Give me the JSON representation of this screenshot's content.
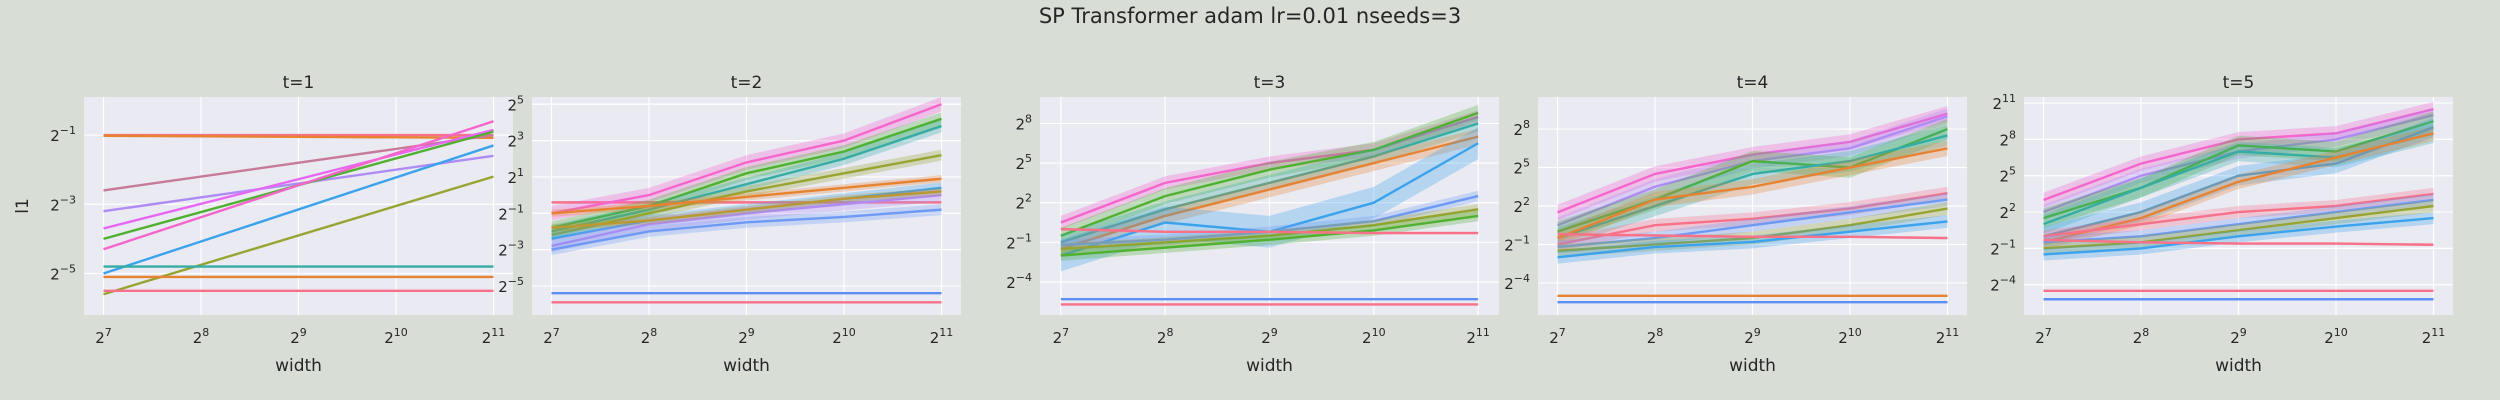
{
  "figure": {
    "suptitle": "SP Transformer adam lr=0.01 nseeds=3",
    "background": "#d8ddd6",
    "axes_background": "#eaeaf2",
    "grid": true,
    "palette": [
      "#f77189",
      "#e68332",
      "#bb9832",
      "#97a431",
      "#50b131",
      "#34ae91",
      "#37abb4",
      "#3ba3ec",
      "#6e9af4",
      "#ae8cf4",
      "#e866f4",
      "#f565cc",
      "#c58a44",
      "#36ada4",
      "#8c9b32",
      "#5d8ff4"
    ]
  },
  "chart_data": [
    {
      "type": "line",
      "title": "t=1",
      "xlabel": "width",
      "ylabel": "l1",
      "xscale": "log2",
      "yscale": "log2",
      "x_ticks": [
        "7",
        "8",
        "9",
        "10",
        "11"
      ],
      "y_ticks": [
        "-5",
        "-3",
        "-1"
      ],
      "xlim_log2": [
        6.8,
        11.2
      ],
      "ylim_log2": [
        -6.2,
        0.1
      ],
      "x": [
        128,
        2048
      ],
      "series": [
        {
          "values": [
            -1.0,
            -1.0
          ],
          "color": "#f77189",
          "band": 0.02
        },
        {
          "values": [
            -1.02,
            -1.08
          ],
          "color": "#e68332",
          "band": 0.02
        },
        {
          "values": [
            -2.6,
            -1.0
          ],
          "color": "#c77a99",
          "band": 0.03
        },
        {
          "values": [
            -3.2,
            -1.6
          ],
          "color": "#ae8cf4",
          "band": 0.02
        },
        {
          "values": [
            -3.7,
            -0.85
          ],
          "color": "#e866f4",
          "band": 0.02
        },
        {
          "values": [
            -4.0,
            -0.9
          ],
          "color": "#50b131",
          "band": 0.02
        },
        {
          "values": [
            -4.3,
            -0.6
          ],
          "color": "#f565cc",
          "band": 0.02
        },
        {
          "values": [
            -5.0,
            -1.3
          ],
          "color": "#3ba3ec",
          "band": 0.02
        },
        {
          "values": [
            -5.6,
            -2.2
          ],
          "color": "#97a431",
          "band": 0.02
        },
        {
          "values": [
            -4.8,
            -4.8
          ],
          "color": "#36ada4",
          "band": 0.02
        },
        {
          "values": [
            -5.1,
            -5.1
          ],
          "color": "#e68332",
          "band": 0.02
        },
        {
          "values": [
            -5.5,
            -5.5
          ],
          "color": "#f77189",
          "band": 0.02
        }
      ]
    },
    {
      "type": "line",
      "title": "t=2",
      "xlabel": "width",
      "ylabel": "",
      "xscale": "log2",
      "yscale": "log2",
      "x_ticks": [
        "7",
        "8",
        "9",
        "10",
        "11"
      ],
      "y_ticks": [
        "-5",
        "-3",
        "-1",
        "1",
        "3",
        "5"
      ],
      "xlim_log2": [
        6.8,
        11.2
      ],
      "ylim_log2": [
        -6.6,
        5.4
      ],
      "x": [
        128,
        256,
        512,
        1024,
        2048
      ],
      "series": [
        {
          "values": [
            -0.4,
            -0.4,
            -0.4,
            -0.4,
            -0.4
          ],
          "color": "#f77189",
          "band": 0.05
        },
        {
          "values": [
            -1.0,
            0.0,
            1.8,
            3.0,
            5.0
          ],
          "color": "#f565cc",
          "band": 0.4
        },
        {
          "values": [
            -1.8,
            -0.6,
            1.2,
            2.4,
            4.2
          ],
          "color": "#50b131",
          "band": 0.35
        },
        {
          "values": [
            -2.0,
            -0.8,
            0.6,
            2.0,
            3.8
          ],
          "color": "#36ada4",
          "band": 0.35
        },
        {
          "values": [
            -2.2,
            -1.0,
            0.2,
            1.2,
            2.2
          ],
          "color": "#97a431",
          "band": 0.3
        },
        {
          "values": [
            -1.0,
            -0.6,
            -0.1,
            0.4,
            0.9
          ],
          "color": "#e68332",
          "band": 0.2
        },
        {
          "values": [
            -2.4,
            -1.4,
            -0.8,
            -0.2,
            0.4
          ],
          "color": "#3ba3ec",
          "band": 0.3
        },
        {
          "values": [
            -2.8,
            -1.6,
            -1.0,
            -0.5,
            0.0
          ],
          "color": "#ae8cf4",
          "band": 0.35
        },
        {
          "values": [
            -3.0,
            -2.0,
            -1.5,
            -1.2,
            -0.8
          ],
          "color": "#6e9af4",
          "band": 0.3
        },
        {
          "values": [
            -1.8,
            -1.4,
            -0.8,
            -0.2,
            0.2
          ],
          "color": "#bb9832",
          "band": 0.2
        },
        {
          "values": [
            -5.4,
            -5.4,
            -5.4,
            -5.4,
            -5.4
          ],
          "color": "#5d8ff4",
          "band": 0.05
        },
        {
          "values": [
            -5.9,
            -5.9,
            -5.9,
            -5.9,
            -5.9
          ],
          "color": "#f77189",
          "band": 0.05
        }
      ]
    },
    {
      "type": "line",
      "title": "t=3",
      "xlabel": "width",
      "ylabel": "",
      "xscale": "log2",
      "yscale": "log2",
      "x_ticks": [
        "7",
        "8",
        "9",
        "10",
        "11"
      ],
      "y_ticks": [
        "-4",
        "-1",
        "2",
        "5",
        "8"
      ],
      "xlim_log2": [
        6.8,
        11.2
      ],
      "ylim_log2": [
        -6.5,
        10.0
      ],
      "x": [
        128,
        256,
        512,
        1024,
        2048
      ],
      "series": [
        {
          "values": [
            0.5,
            3.5,
            5.0,
            6.0,
            8.5
          ],
          "color": "#f565cc",
          "band": 0.5
        },
        {
          "values": [
            -0.5,
            2.5,
            4.5,
            6.0,
            8.8
          ],
          "color": "#50b131",
          "band": 0.6
        },
        {
          "values": [
            -1.0,
            1.5,
            3.5,
            5.5,
            8.0
          ],
          "color": "#36ada4",
          "band": 0.6
        },
        {
          "values": [
            -1.5,
            1.0,
            3.0,
            5.0,
            7.0
          ],
          "color": "#e68332",
          "band": 0.6
        },
        {
          "values": [
            -2.0,
            0.5,
            -0.2,
            2.0,
            6.5
          ],
          "color": "#3ba3ec",
          "band": 1.2
        },
        {
          "values": [
            -1.2,
            -0.8,
            -0.2,
            0.6,
            2.5
          ],
          "color": "#6e9af4",
          "band": 0.4
        },
        {
          "values": [
            -1.5,
            -1.0,
            -0.5,
            0.3,
            1.5
          ],
          "color": "#97a431",
          "band": 0.4
        },
        {
          "values": [
            -2.0,
            -1.4,
            -0.8,
            -0.1,
            1.0
          ],
          "color": "#50b131",
          "band": 0.4
        },
        {
          "values": [
            0.0,
            -0.2,
            -0.2,
            -0.3,
            -0.3
          ],
          "color": "#f77189",
          "band": 0.1
        },
        {
          "values": [
            -5.3,
            -5.3,
            -5.3,
            -5.3,
            -5.3
          ],
          "color": "#5d8ff4",
          "band": 0.05
        },
        {
          "values": [
            -5.7,
            -5.7,
            -5.7,
            -5.7,
            -5.7
          ],
          "color": "#f77189",
          "band": 0.05
        }
      ]
    },
    {
      "type": "line",
      "title": "t=4",
      "xlabel": "width",
      "ylabel": "",
      "xscale": "log2",
      "yscale": "log2",
      "x_ticks": [
        "7",
        "8",
        "9",
        "10",
        "11"
      ],
      "y_ticks": [
        "-4",
        "-1",
        "2",
        "5",
        "8"
      ],
      "xlim_log2": [
        6.8,
        11.2
      ],
      "ylim_log2": [
        -6.5,
        10.5
      ],
      "x": [
        128,
        256,
        512,
        1024,
        2048
      ],
      "series": [
        {
          "values": [
            1.5,
            4.5,
            6.0,
            7.0,
            9.2
          ],
          "color": "#f565cc",
          "band": 0.6
        },
        {
          "values": [
            0.5,
            3.5,
            5.5,
            6.5,
            9.0
          ],
          "color": "#ae8cf4",
          "band": 0.6
        },
        {
          "values": [
            0.0,
            2.5,
            5.5,
            5.0,
            8.0
          ],
          "color": "#50b131",
          "band": 0.8
        },
        {
          "values": [
            -0.5,
            2.0,
            4.5,
            5.5,
            7.5
          ],
          "color": "#36ada4",
          "band": 0.8
        },
        {
          "values": [
            -0.5,
            2.5,
            3.5,
            5.0,
            6.5
          ],
          "color": "#e68332",
          "band": 0.6
        },
        {
          "values": [
            -1.0,
            0.5,
            1.0,
            1.8,
            3.0
          ],
          "color": "#f77189",
          "band": 0.5
        },
        {
          "values": [
            -1.2,
            -0.5,
            0.5,
            1.5,
            2.5
          ],
          "color": "#6e9af4",
          "band": 0.5
        },
        {
          "values": [
            -1.5,
            -1.0,
            -0.5,
            0.5,
            1.8
          ],
          "color": "#97a431",
          "band": 0.5
        },
        {
          "values": [
            -2.0,
            -1.2,
            -0.8,
            0.0,
            0.8
          ],
          "color": "#3ba3ec",
          "band": 0.5
        },
        {
          "values": [
            -0.2,
            -0.3,
            -0.4,
            -0.4,
            -0.5
          ],
          "color": "#f77189",
          "band": 0.1
        },
        {
          "values": [
            -5.0,
            -5.0,
            -5.0,
            -5.0,
            -5.0
          ],
          "color": "#e68332",
          "band": 0.05
        },
        {
          "values": [
            -5.5,
            -5.5,
            -5.5,
            -5.5,
            -5.5
          ],
          "color": "#5d8ff4",
          "band": 0.05
        }
      ]
    },
    {
      "type": "line",
      "title": "t=5",
      "xlabel": "width",
      "ylabel": "",
      "xscale": "log2",
      "yscale": "log2",
      "x_ticks": [
        "7",
        "8",
        "9",
        "10",
        "11"
      ],
      "y_ticks": [
        "-4",
        "-1",
        "2",
        "5",
        "8",
        "11"
      ],
      "xlim_log2": [
        6.8,
        11.2
      ],
      "ylim_log2": [
        -6.5,
        11.5
      ],
      "x": [
        128,
        256,
        512,
        1024,
        2048
      ],
      "series": [
        {
          "values": [
            3.0,
            6.0,
            8.0,
            8.5,
            10.5
          ],
          "color": "#f565cc",
          "band": 0.6
        },
        {
          "values": [
            2.0,
            5.0,
            7.0,
            8.0,
            10.0
          ],
          "color": "#ae8cf4",
          "band": 0.6
        },
        {
          "values": [
            1.5,
            4.0,
            7.5,
            7.0,
            9.5
          ],
          "color": "#50b131",
          "band": 0.8
        },
        {
          "values": [
            1.0,
            4.0,
            7.0,
            6.5,
            8.5
          ],
          "color": "#36ada4",
          "band": 0.8
        },
        {
          "values": [
            0.0,
            2.0,
            5.0,
            6.0,
            9.0
          ],
          "color": "#3ba3ec",
          "band": 0.8
        },
        {
          "values": [
            -0.5,
            1.5,
            4.5,
            6.5,
            8.5
          ],
          "color": "#e68332",
          "band": 0.6
        },
        {
          "values": [
            0.0,
            1.0,
            2.0,
            2.5,
            3.5
          ],
          "color": "#f77189",
          "band": 0.5
        },
        {
          "values": [
            -0.5,
            0.0,
            1.0,
            2.0,
            3.0
          ],
          "color": "#6e9af4",
          "band": 0.5
        },
        {
          "values": [
            -1.0,
            -0.5,
            0.5,
            1.5,
            2.5
          ],
          "color": "#97a431",
          "band": 0.5
        },
        {
          "values": [
            -1.5,
            -1.0,
            0.0,
            0.8,
            1.5
          ],
          "color": "#3ba3ec",
          "band": 0.5
        },
        {
          "values": [
            -0.3,
            -0.5,
            -0.6,
            -0.6,
            -0.7
          ],
          "color": "#f77189",
          "band": 0.1
        },
        {
          "values": [
            -4.5,
            -4.5,
            -4.5,
            -4.5,
            -4.5
          ],
          "color": "#f77189",
          "band": 0.05
        },
        {
          "values": [
            -5.2,
            -5.2,
            -5.2,
            -5.2,
            -5.2
          ],
          "color": "#5d8ff4",
          "band": 0.05
        }
      ]
    }
  ]
}
